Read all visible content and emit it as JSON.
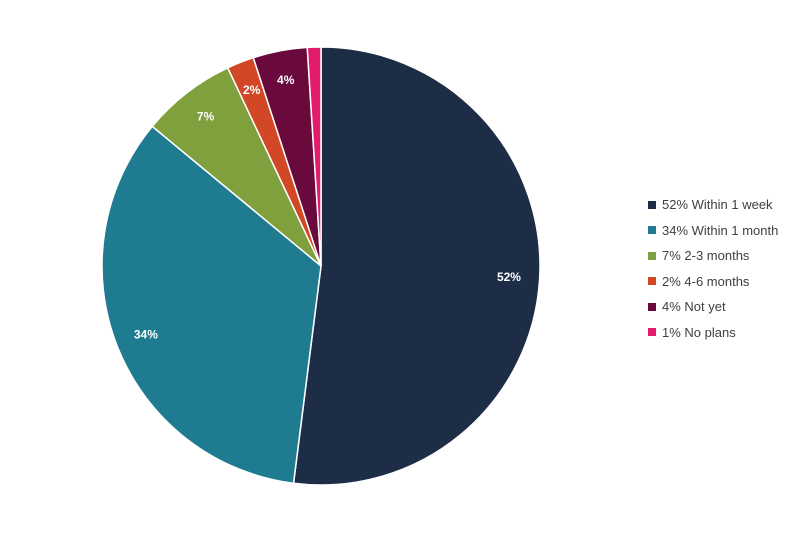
{
  "chart_data": {
    "type": "pie",
    "title": "",
    "categories": [
      "Within 1 week",
      "Within 1 month",
      "2-3 months",
      "4-6 months",
      "Not yet",
      "No plans"
    ],
    "values": [
      52,
      34,
      7,
      2,
      4,
      1
    ],
    "value_labels": [
      "52%",
      "34%",
      "7%",
      "2%",
      "4%",
      ""
    ],
    "legend": [
      "52% Within 1 week",
      "34% Within 1 month",
      "7% 2-3 months",
      "2% 4-6 months",
      "4% Not yet",
      "1% No plans"
    ],
    "colors": [
      "#1e2d46",
      "#1e7b90",
      "#7fa03c",
      "#d24726",
      "#6a0a3c",
      "#e31b6d"
    ],
    "legend_position": "right",
    "start_angle": "12 o'clock",
    "direction": "clockwise"
  }
}
